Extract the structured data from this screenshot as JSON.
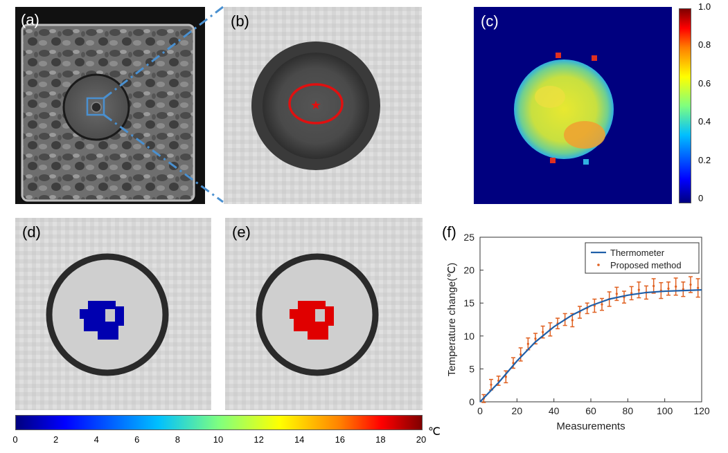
{
  "panels": {
    "a": {
      "label": "(a)"
    },
    "b": {
      "label": "(b)"
    },
    "c": {
      "label": "(c)"
    },
    "d": {
      "label": "(d)"
    },
    "e": {
      "label": "(e)"
    },
    "f": {
      "label": "(f)"
    }
  },
  "colorbar_c": {
    "ticks": [
      "1.0",
      "0.8",
      "0.6",
      "0.4",
      "0.2",
      "0"
    ]
  },
  "colorbar_bottom": {
    "ticks": [
      "0",
      "2",
      "4",
      "6",
      "8",
      "10",
      "12",
      "14",
      "16",
      "18",
      "20"
    ],
    "unit": "℃"
  },
  "colors": {
    "callout_line": "#4a90d0",
    "roi_ellipse": "#e01010",
    "thermometer": "#1f5fa8",
    "proposed": "#e06020"
  },
  "chart_data": {
    "type": "line",
    "title": "",
    "xlabel": "Measurements",
    "ylabel": "Temperature change(℃)",
    "xlim": [
      0,
      120
    ],
    "ylim": [
      0,
      25
    ],
    "xticks": [
      0,
      20,
      40,
      60,
      80,
      100,
      120
    ],
    "yticks": [
      0,
      5,
      10,
      15,
      20,
      25
    ],
    "legend": {
      "placement": "top-right",
      "entries": [
        "Thermometer",
        "Proposed method"
      ]
    },
    "series": [
      {
        "name": "Thermometer",
        "style": "line",
        "x": [
          0,
          10,
          20,
          30,
          40,
          50,
          60,
          70,
          80,
          90,
          100,
          110,
          120
        ],
        "y": [
          0,
          2.9,
          6.2,
          9.1,
          11.4,
          13.2,
          14.6,
          15.6,
          16.2,
          16.6,
          16.8,
          16.9,
          17.0
        ]
      },
      {
        "name": "Proposed method",
        "style": "errorbar",
        "x": [
          2,
          6,
          10,
          14,
          18,
          22,
          26,
          30,
          34,
          38,
          42,
          46,
          50,
          54,
          58,
          62,
          66,
          70,
          74,
          78,
          82,
          86,
          90,
          94,
          98,
          102,
          106,
          110,
          114,
          118
        ],
        "y": [
          0.5,
          2.6,
          3.2,
          3.8,
          5.9,
          7.2,
          8.8,
          9.6,
          10.6,
          11.0,
          11.9,
          12.5,
          12.4,
          13.6,
          14.2,
          14.6,
          14.8,
          15.6,
          16.4,
          15.9,
          16.5,
          17.0,
          16.6,
          17.6,
          16.9,
          17.2,
          17.5,
          17.1,
          17.8,
          17.3
        ],
        "err": [
          0.6,
          0.8,
          0.7,
          0.9,
          0.8,
          1.0,
          0.9,
          0.8,
          0.9,
          1.0,
          0.8,
          0.9,
          1.0,
          0.9,
          0.8,
          1.0,
          0.9,
          1.1,
          1.0,
          0.9,
          1.0,
          1.2,
          1.0,
          1.1,
          1.2,
          1.0,
          1.3,
          1.1,
          1.2,
          1.4
        ]
      }
    ]
  }
}
